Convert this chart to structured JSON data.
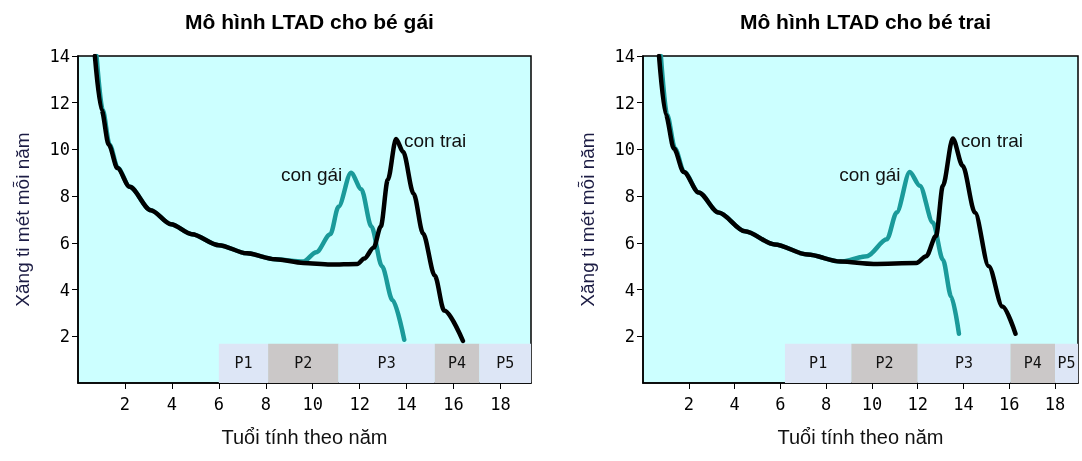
{
  "chart_data": [
    {
      "type": "line",
      "title": "Mô hình LTAD cho bé gái",
      "xlabel": "Tuổi tính theo năm",
      "ylabel": "Xăng ti mét mỗi năm",
      "xlim": [
        0,
        19.3
      ],
      "xticks": [
        2,
        4,
        6,
        8,
        10,
        12,
        14,
        16,
        18
      ],
      "ylim": [
        0,
        14
      ],
      "yticks": [
        2,
        4,
        6,
        8,
        10,
        12,
        14
      ],
      "series": [
        {
          "color": "#1a9a9a",
          "x": [
            0.79,
            1.05,
            1.35,
            1.7,
            2.2,
            3.1,
            3.96,
            4.85,
            6.0,
            7.2,
            8.4,
            9.6,
            10.15,
            10.75,
            11.1,
            11.63,
            12.07,
            12.5,
            12.95,
            13.4,
            13.9
          ],
          "values": [
            14,
            11.7,
            10.2,
            9.2,
            8.4,
            7.4,
            6.8,
            6.37,
            5.9,
            5.55,
            5.3,
            5.2,
            5.6,
            6.37,
            7.55,
            9.0,
            8.3,
            6.7,
            5.0,
            3.55,
            1.85
          ]
        },
        {
          "color": "#000000",
          "x": [
            0.72,
            1.0,
            1.31,
            1.68,
            2.2,
            3.1,
            3.96,
            4.85,
            6.0,
            7.2,
            8.4,
            9.6,
            10.75,
            11.9,
            12.2,
            12.6,
            12.9,
            13.2,
            13.55,
            13.85,
            14.3,
            14.7,
            15.2,
            15.6,
            16.4
          ],
          "values": [
            14,
            11.7,
            10.2,
            9.2,
            8.4,
            7.4,
            6.8,
            6.37,
            5.9,
            5.55,
            5.3,
            5.14,
            5.07,
            5.1,
            5.33,
            5.8,
            6.7,
            8.7,
            10.45,
            9.9,
            8.1,
            6.4,
            4.6,
            3.1,
            1.8
          ]
        }
      ],
      "annotations": [
        {
          "text": "con gái",
          "x": 11.6,
          "y": 9.0
        },
        {
          "text": "con trai",
          "x": 13.55,
          "y": 10.45
        }
      ],
      "bands": [
        {
          "axis": "x",
          "from": 6.0,
          "to": 8.1,
          "label": "P1",
          "color": "#dde6f6"
        },
        {
          "axis": "x",
          "from": 8.1,
          "to": 11.1,
          "label": "P2",
          "color": "#cbc8c8"
        },
        {
          "axis": "x",
          "from": 11.1,
          "to": 15.2,
          "label": "P3",
          "color": "#dde6f6"
        },
        {
          "axis": "x",
          "from": 15.2,
          "to": 17.1,
          "label": "P4",
          "color": "#cbc8c8"
        },
        {
          "axis": "x",
          "from": 17.1,
          "to": 19.3,
          "label": "P5",
          "color": "#dde6f6"
        }
      ]
    },
    {
      "type": "line",
      "title": "Mô hình LTAD cho bé trai",
      "xlabel": "Tuổi tính theo năm",
      "ylabel": "Xăng ti mét mỗi năm",
      "xlim": [
        0,
        19
      ],
      "xticks": [
        2,
        4,
        6,
        8,
        10,
        12,
        14,
        16,
        18
      ],
      "ylim": [
        0,
        14
      ],
      "yticks": [
        2,
        4,
        6,
        8,
        10,
        12,
        14
      ],
      "series": [
        {
          "color": "#1a9a9a",
          "x": [
            0.78,
            1.05,
            1.4,
            1.8,
            2.43,
            3.3,
            4.45,
            5.75,
            7.19,
            8.63,
            9.78,
            10.65,
            11.08,
            11.65,
            12.09,
            12.66,
            13.1,
            13.46,
            13.8
          ],
          "values": [
            14,
            11.5,
            10.04,
            9.03,
            8.16,
            7.3,
            6.5,
            5.93,
            5.5,
            5.2,
            5.43,
            6.15,
            7.3,
            9.03,
            8.45,
            6.87,
            5.28,
            3.7,
            2.11
          ]
        },
        {
          "color": "#000000",
          "x": [
            0.7,
            0.99,
            1.35,
            1.78,
            2.43,
            3.3,
            4.45,
            5.75,
            7.19,
            8.63,
            10.07,
            11.94,
            12.37,
            12.8,
            13.1,
            13.53,
            13.96,
            14.5,
            15.1,
            15.7,
            16.27
          ],
          "values": [
            14,
            11.5,
            10.04,
            9.03,
            8.16,
            7.3,
            6.5,
            5.93,
            5.5,
            5.2,
            5.1,
            5.14,
            5.43,
            6.3,
            8.45,
            10.47,
            9.3,
            7.3,
            5.0,
            3.27,
            2.11
          ]
        }
      ],
      "annotations": [
        {
          "text": "con gái",
          "x": 11.6,
          "y": 9.0
        },
        {
          "text": "con trai",
          "x": 13.53,
          "y": 10.47
        }
      ],
      "bands": [
        {
          "axis": "x",
          "from": 6.2,
          "to": 9.1,
          "label": "P1",
          "color": "#dde6f6"
        },
        {
          "axis": "x",
          "from": 9.1,
          "to": 12.0,
          "label": "P2",
          "color": "#cbc8c8"
        },
        {
          "axis": "x",
          "from": 12.0,
          "to": 16.05,
          "label": "P3",
          "color": "#dde6f6"
        },
        {
          "axis": "x",
          "from": 16.05,
          "to": 18.0,
          "label": "P4",
          "color": "#cbc8c8"
        },
        {
          "axis": "x",
          "from": 18.0,
          "to": 19,
          "label": "P5",
          "color": "#dde6f6"
        }
      ]
    }
  ]
}
